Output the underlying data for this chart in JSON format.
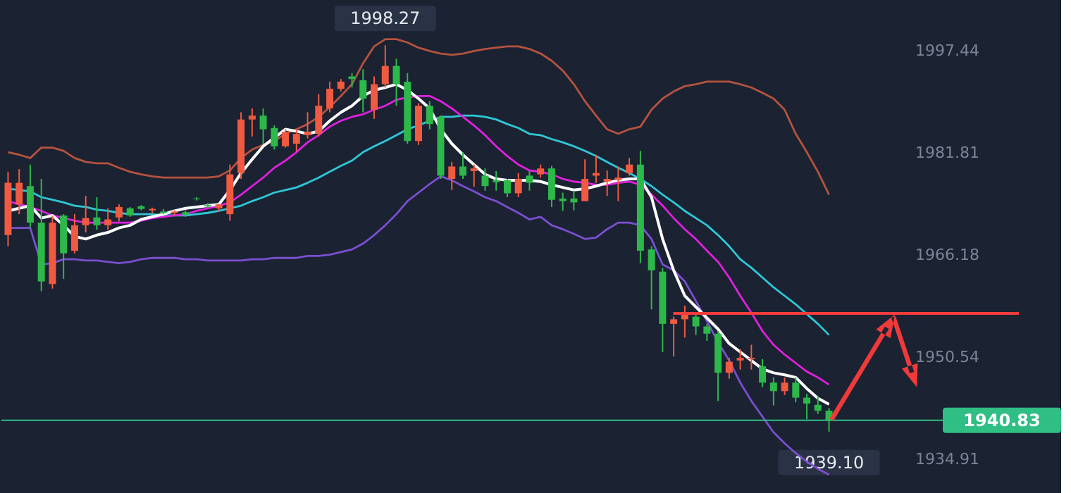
{
  "chart_data": {
    "type": "candlestick",
    "categories": [
      null,
      null,
      null,
      null,
      null,
      null,
      null,
      null,
      null,
      null,
      null,
      null,
      null,
      null,
      null,
      null,
      null,
      null,
      null,
      null,
      null,
      null,
      null,
      null,
      null,
      null,
      null,
      null,
      null,
      null,
      null,
      null,
      null,
      null,
      null,
      null,
      null,
      null,
      null,
      null,
      null,
      null,
      null,
      null,
      null,
      null,
      null,
      null,
      null,
      null,
      null,
      null,
      null,
      null,
      null,
      null,
      null,
      null,
      null,
      null,
      null,
      null,
      null,
      null,
      null,
      null,
      null,
      null,
      null,
      null,
      null,
      null,
      null,
      null,
      null
    ],
    "ohlc": [
      [
        1969.2,
        1978.9,
        1967.5,
        1977.2
      ],
      [
        1973.9,
        1979.3,
        1972.4,
        1977.2
      ],
      [
        1976.7,
        1980.0,
        1970.3,
        1971.1
      ],
      [
        1971.1,
        1977.8,
        1960.6,
        1962.1
      ],
      [
        1961.7,
        1972.2,
        1961.0,
        1971.1
      ],
      [
        1972.2,
        1972.4,
        1962.5,
        1966.4
      ],
      [
        1966.8,
        1972.4,
        1966.4,
        1970.7
      ],
      [
        1970.7,
        1975.2,
        1969.6,
        1971.8
      ],
      [
        1971.9,
        1975.0,
        1970.0,
        1970.7
      ],
      [
        1970.7,
        1973.3,
        1970.0,
        1971.6
      ],
      [
        1971.9,
        1973.9,
        1971.3,
        1973.5
      ],
      [
        1973.3,
        1973.5,
        1972.0,
        1972.2
      ],
      [
        1973.6,
        1973.8,
        1973.0,
        1973.2
      ],
      [
        1973.0,
        1973.4,
        1972.6,
        1973.2
      ],
      [
        1972.8,
        1973.2,
        1972.4,
        1972.6
      ],
      [
        1972.6,
        1973.0,
        1972.2,
        1972.8
      ],
      [
        1972.7,
        1973.0,
        1972.0,
        1972.3
      ],
      [
        1974.8,
        1975.0,
        1974.5,
        1974.7
      ],
      [
        1973.8,
        1974.1,
        1973.4,
        1973.6
      ],
      [
        1973.3,
        1974.0,
        1972.8,
        1973.9
      ],
      [
        1972.4,
        1980.0,
        1971.4,
        1978.5
      ],
      [
        1978.7,
        1988.0,
        1977.8,
        1986.9
      ],
      [
        1986.9,
        1988.6,
        1984.3,
        1987.5
      ],
      [
        1987.5,
        1988.6,
        1983.2,
        1985.4
      ],
      [
        1985.6,
        1986.0,
        1982.3,
        1982.8
      ],
      [
        1982.8,
        1985.4,
        1982.6,
        1985.0
      ],
      [
        1983.2,
        1985.4,
        1982.0,
        1984.7
      ],
      [
        1984.5,
        1988.0,
        1984.0,
        1985.0
      ],
      [
        1984.7,
        1990.8,
        1984.3,
        1989.0
      ],
      [
        1988.6,
        1992.7,
        1988.0,
        1991.6
      ],
      [
        1991.6,
        1993.1,
        1991.2,
        1992.7
      ],
      [
        1993.5,
        1994.0,
        1991.8,
        1993.1
      ],
      [
        1992.9,
        1994.6,
        1988.0,
        1990.1
      ],
      [
        1988.4,
        1993.5,
        1987.0,
        1992.3
      ],
      [
        1992.3,
        1998.27,
        1991.8,
        1995.1
      ],
      [
        1995.1,
        1996.2,
        1989.0,
        1992.3
      ],
      [
        1992.7,
        1994.0,
        1983.2,
        1983.6
      ],
      [
        1983.6,
        1989.4,
        1983.0,
        1989.0
      ],
      [
        1989.0,
        1989.7,
        1985.4,
        1986.2
      ],
      [
        1987.3,
        1987.5,
        1977.8,
        1978.3
      ],
      [
        1977.8,
        1980.4,
        1976.1,
        1979.7
      ],
      [
        1979.7,
        1981.9,
        1977.8,
        1978.3
      ],
      [
        1979.0,
        1980.0,
        1976.6,
        1979.4
      ],
      [
        1978.3,
        1979.4,
        1976.0,
        1976.7
      ],
      [
        1977.6,
        1979.0,
        1976.0,
        1977.3
      ],
      [
        1977.6,
        1977.8,
        1975.0,
        1975.6
      ],
      [
        1975.6,
        1978.7,
        1975.0,
        1977.8
      ],
      [
        1978.3,
        1979.0,
        1976.0,
        1977.2
      ],
      [
        1978.5,
        1980.0,
        1978.0,
        1979.4
      ],
      [
        1979.4,
        1979.8,
        1973.5,
        1974.6
      ],
      [
        1974.8,
        1975.7,
        1972.9,
        1974.4
      ],
      [
        1974.8,
        1976.0,
        1973.0,
        1974.2
      ],
      [
        1974.4,
        1980.8,
        1974.4,
        1977.8
      ],
      [
        1978.3,
        1981.5,
        1977.2,
        1978.7
      ],
      [
        1977.4,
        1979.1,
        1975.2,
        1977.8
      ],
      [
        1977.6,
        1979.7,
        1974.4,
        1978.0
      ],
      [
        1978.7,
        1981.0,
        1978.3,
        1980.0
      ],
      [
        1980.0,
        1982.1,
        1964.9,
        1966.8
      ],
      [
        1967.0,
        1967.5,
        1957.8,
        1963.8
      ],
      [
        1963.6,
        1964.2,
        1951.3,
        1955.6
      ],
      [
        1955.6,
        1956.7,
        1950.6,
        1956.3
      ],
      [
        1956.3,
        1958.4,
        1953.5,
        1957.0
      ],
      [
        1956.7,
        1957.4,
        1953.9,
        1955.2
      ],
      [
        1955.2,
        1955.6,
        1953.0,
        1954.1
      ],
      [
        1954.1,
        1954.5,
        1943.8,
        1948.1
      ],
      [
        1948.1,
        1950.4,
        1947.2,
        1949.8
      ],
      [
        1950.0,
        1951.7,
        1948.6,
        1950.4
      ],
      [
        1950.2,
        1952.4,
        1948.6,
        1950.4
      ],
      [
        1949.1,
        1950.2,
        1945.9,
        1946.6
      ],
      [
        1946.6,
        1947.4,
        1943.1,
        1945.3
      ],
      [
        1945.3,
        1947.4,
        1944.7,
        1946.6
      ],
      [
        1946.6,
        1947.4,
        1943.6,
        1944.3
      ],
      [
        1944.3,
        1944.9,
        1941.0,
        1943.4
      ],
      [
        1943.2,
        1944.5,
        1941.8,
        1942.3
      ],
      [
        1942.3,
        1942.7,
        1939.1,
        1940.83
      ]
    ],
    "colors": [
      "#f05a40",
      "#f05a40",
      "#2db84a",
      "#2db84a",
      "#f05a40",
      "#2db84a",
      "#f05a40",
      "#f05a40",
      "#2db84a",
      "#f05a40",
      "#f05a40",
      "#2db84a",
      "#2db84a",
      "#f05a40",
      "#2db84a",
      "#f05a40",
      "#2db84a",
      "#2db84a",
      "#2db84a",
      "#f05a40",
      "#f05a40",
      "#f05a40",
      "#f05a40",
      "#2db84a",
      "#2db84a",
      "#f05a40",
      "#f05a40",
      "#f05a40",
      "#f05a40",
      "#f05a40",
      "#f05a40",
      "#2db84a",
      "#2db84a",
      "#f05a40",
      "#f05a40",
      "#2db84a",
      "#2db84a",
      "#f05a40",
      "#2db84a",
      "#2db84a",
      "#f05a40",
      "#2db84a",
      "#f05a40",
      "#2db84a",
      "#2db84a",
      "#2db84a",
      "#f05a40",
      "#2db84a",
      "#f05a40",
      "#2db84a",
      "#2db84a",
      "#2db84a",
      "#f05a40",
      "#f05a40",
      "#f05a40",
      "#f05a40",
      "#f05a40",
      "#2db84a",
      "#2db84a",
      "#2db84a",
      "#f05a40",
      "#f05a40",
      "#2db84a",
      "#2db84a",
      "#2db84a",
      "#f05a40",
      "#f05a40",
      "#f05a40",
      "#2db84a",
      "#2db84a",
      "#f05a40",
      "#2db84a",
      "#2db84a",
      "#2db84a",
      "#2db84a"
    ],
    "series": [
      {
        "type": "line",
        "color": "#b5533f",
        "values": [
          1981.9,
          1981.5,
          1981.0,
          1982.6,
          1982.6,
          1982.1,
          1981.0,
          1980.4,
          1980.2,
          1980.2,
          1979.5,
          1978.9,
          1978.5,
          1978.2,
          1978.0,
          1978.0,
          1978.0,
          1978.0,
          1978.0,
          1978.2,
          1979.1,
          1981.0,
          1982.3,
          1983.0,
          1983.6,
          1984.7,
          1985.4,
          1986.2,
          1987.3,
          1988.8,
          1990.5,
          1992.3,
          1995.5,
          1998.1,
          1999.2,
          1999.2,
          1998.7,
          1997.9,
          1997.4,
          1997.0,
          1996.8,
          1997.0,
          1997.4,
          1997.7,
          1997.9,
          1998.1,
          1998.1,
          1997.7,
          1997.0,
          1995.9,
          1994.4,
          1992.3,
          1989.7,
          1987.5,
          1985.4,
          1984.7,
          1985.4,
          1985.8,
          1988.4,
          1990.1,
          1991.2,
          1992.0,
          1992.3,
          1992.7,
          1992.7,
          1992.7,
          1992.3,
          1991.8,
          1991.0,
          1990.1,
          1988.4,
          1984.7,
          1981.9,
          1978.9,
          1975.4
        ]
      },
      {
        "type": "line",
        "color": "#7a4fd0",
        "values": [
          1970.3,
          1970.3,
          1970.3,
          1964.7,
          1964.9,
          1965.5,
          1965.5,
          1965.3,
          1965.3,
          1965.1,
          1964.9,
          1965.1,
          1965.5,
          1965.7,
          1965.7,
          1965.7,
          1965.5,
          1965.5,
          1965.3,
          1965.3,
          1965.3,
          1965.3,
          1965.5,
          1965.5,
          1965.7,
          1965.7,
          1965.7,
          1966.0,
          1966.0,
          1966.2,
          1966.6,
          1967.0,
          1967.9,
          1969.2,
          1970.7,
          1972.4,
          1974.4,
          1975.7,
          1977.0,
          1978.2,
          1977.6,
          1976.7,
          1975.9,
          1975.0,
          1974.4,
          1973.5,
          1972.6,
          1971.6,
          1972.0,
          1970.7,
          1970.1,
          1969.4,
          1968.6,
          1968.8,
          1970.1,
          1971.1,
          1971.1,
          1970.7,
          1968.6,
          1964.7,
          1963.8,
          1962.1,
          1959.1,
          1956.0,
          1952.8,
          1950.0,
          1946.6,
          1943.8,
          1941.4,
          1939.0,
          1937.3,
          1935.8,
          1934.5,
          1933.4,
          1932.5
        ]
      },
      {
        "type": "line",
        "color": "#2ec8d8",
        "values": [
          1976.3,
          1976.1,
          1975.9,
          1975.0,
          1974.6,
          1974.2,
          1973.7,
          1973.5,
          1973.1,
          1972.9,
          1972.6,
          1972.4,
          1972.4,
          1972.4,
          1972.2,
          1972.2,
          1972.2,
          1972.4,
          1972.6,
          1972.9,
          1973.3,
          1973.7,
          1974.4,
          1975.0,
          1975.7,
          1976.1,
          1976.5,
          1977.2,
          1978.0,
          1978.9,
          1979.8,
          1980.6,
          1981.9,
          1982.8,
          1983.6,
          1984.5,
          1985.4,
          1986.0,
          1986.7,
          1987.3,
          1987.3,
          1987.5,
          1987.5,
          1987.3,
          1986.9,
          1986.2,
          1985.6,
          1984.7,
          1984.5,
          1983.9,
          1983.4,
          1982.8,
          1982.1,
          1981.3,
          1980.4,
          1979.5,
          1978.7,
          1977.8,
          1976.7,
          1975.4,
          1974.2,
          1972.9,
          1971.8,
          1970.7,
          1969.2,
          1967.5,
          1965.5,
          1964.2,
          1962.7,
          1961.2,
          1959.9,
          1958.6,
          1957.1,
          1955.6,
          1953.9
        ]
      },
      {
        "type": "line",
        "color": "#e020e0",
        "values": [
          1974.4,
          1973.9,
          1973.5,
          1972.9,
          1972.2,
          1971.8,
          1971.4,
          1971.1,
          1971.1,
          1971.1,
          1971.1,
          1971.1,
          1971.4,
          1971.8,
          1972.0,
          1972.2,
          1972.4,
          1972.9,
          1973.3,
          1973.7,
          1974.2,
          1975.4,
          1976.7,
          1978.0,
          1979.5,
          1980.6,
          1981.9,
          1983.4,
          1984.5,
          1985.8,
          1986.7,
          1987.3,
          1987.7,
          1988.4,
          1989.0,
          1989.9,
          1990.3,
          1990.5,
          1990.5,
          1989.7,
          1988.6,
          1987.3,
          1986.0,
          1984.5,
          1982.8,
          1981.3,
          1980.0,
          1979.1,
          1978.9,
          1978.5,
          1977.8,
          1977.4,
          1977.2,
          1976.9,
          1976.9,
          1977.2,
          1977.4,
          1976.9,
          1975.4,
          1973.7,
          1971.8,
          1970.1,
          1968.6,
          1966.8,
          1965.1,
          1962.7,
          1959.9,
          1957.3,
          1954.5,
          1952.4,
          1950.9,
          1949.6,
          1948.3,
          1947.4,
          1946.3
        ]
      },
      {
        "type": "line",
        "color": "#ffffff",
        "values": [
          1972.9,
          1973.3,
          1973.7,
          1971.8,
          1972.2,
          1970.7,
          1969.0,
          1968.6,
          1969.2,
          1969.6,
          1970.3,
          1970.7,
          1971.6,
          1972.0,
          1972.4,
          1972.9,
          1973.3,
          1973.5,
          1973.7,
          1973.9,
          1976.1,
          1978.7,
          1980.8,
          1982.8,
          1984.1,
          1985.4,
          1985.1,
          1984.7,
          1985.1,
          1986.7,
          1988.0,
          1989.0,
          1990.5,
          1991.4,
          1991.8,
          1992.3,
          1991.4,
          1990.1,
          1988.6,
          1985.4,
          1983.2,
          1981.5,
          1980.0,
          1978.5,
          1977.8,
          1977.6,
          1977.6,
          1977.6,
          1977.4,
          1976.9,
          1976.5,
          1976.1,
          1976.3,
          1976.7,
          1977.2,
          1977.6,
          1977.8,
          1977.8,
          1975.0,
          1968.6,
          1963.8,
          1959.9,
          1958.2,
          1956.5,
          1954.8,
          1952.6,
          1951.3,
          1950.0,
          1948.7,
          1948.1,
          1947.8,
          1947.4,
          1945.7,
          1944.2,
          1943.3
        ]
      }
    ],
    "ylim": [
      1929.7,
      2005.2
    ],
    "yticks": [
      1934.91,
      1950.54,
      1966.18,
      1981.81,
      1997.44
    ],
    "tick_labels": "y",
    "grid": false,
    "ref_lines": [
      {
        "axis": "y",
        "value": 1940.83,
        "label": "1940.83",
        "color": "#2fbf84"
      },
      {
        "axis": "y",
        "value": 1957.2,
        "color": "#f23c3c"
      }
    ],
    "annotations": [
      {
        "text": "1998.27",
        "y": 1998.27
      },
      "1939.10"
    ]
  }
}
